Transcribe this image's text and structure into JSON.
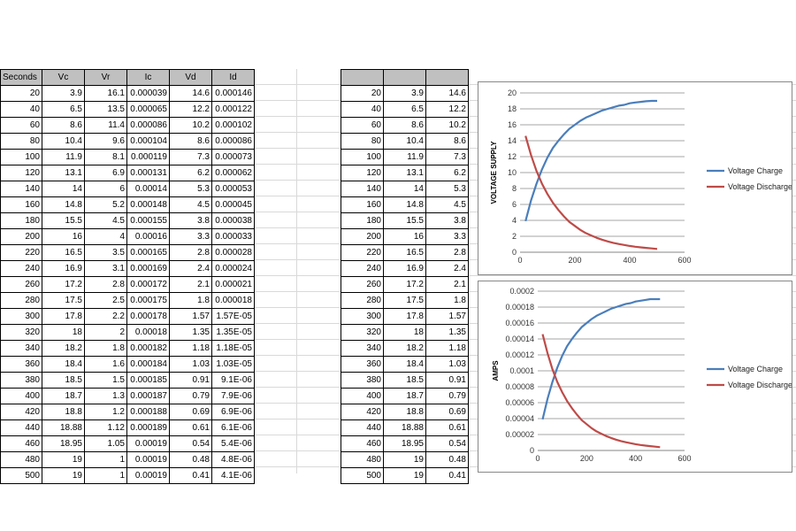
{
  "table_left": {
    "headers": [
      "Seconds",
      "Vc",
      "Vr",
      "Ic",
      "Vd",
      "Id"
    ],
    "rows": [
      [
        "20",
        "3.9",
        "16.1",
        "0.000039",
        "14.6",
        "0.000146"
      ],
      [
        "40",
        "6.5",
        "13.5",
        "0.000065",
        "12.2",
        "0.000122"
      ],
      [
        "60",
        "8.6",
        "11.4",
        "0.000086",
        "10.2",
        "0.000102"
      ],
      [
        "80",
        "10.4",
        "9.6",
        "0.000104",
        "8.6",
        "0.000086"
      ],
      [
        "100",
        "11.9",
        "8.1",
        "0.000119",
        "7.3",
        "0.000073"
      ],
      [
        "120",
        "13.1",
        "6.9",
        "0.000131",
        "6.2",
        "0.000062"
      ],
      [
        "140",
        "14",
        "6",
        "0.00014",
        "5.3",
        "0.000053"
      ],
      [
        "160",
        "14.8",
        "5.2",
        "0.000148",
        "4.5",
        "0.000045"
      ],
      [
        "180",
        "15.5",
        "4.5",
        "0.000155",
        "3.8",
        "0.000038"
      ],
      [
        "200",
        "16",
        "4",
        "0.00016",
        "3.3",
        "0.000033"
      ],
      [
        "220",
        "16.5",
        "3.5",
        "0.000165",
        "2.8",
        "0.000028"
      ],
      [
        "240",
        "16.9",
        "3.1",
        "0.000169",
        "2.4",
        "0.000024"
      ],
      [
        "260",
        "17.2",
        "2.8",
        "0.000172",
        "2.1",
        "0.000021"
      ],
      [
        "280",
        "17.5",
        "2.5",
        "0.000175",
        "1.8",
        "0.000018"
      ],
      [
        "300",
        "17.8",
        "2.2",
        "0.000178",
        "1.57",
        "1.57E-05"
      ],
      [
        "320",
        "18",
        "2",
        "0.00018",
        "1.35",
        "1.35E-05"
      ],
      [
        "340",
        "18.2",
        "1.8",
        "0.000182",
        "1.18",
        "1.18E-05"
      ],
      [
        "360",
        "18.4",
        "1.6",
        "0.000184",
        "1.03",
        "1.03E-05"
      ],
      [
        "380",
        "18.5",
        "1.5",
        "0.000185",
        "0.91",
        "9.1E-06"
      ],
      [
        "400",
        "18.7",
        "1.3",
        "0.000187",
        "0.79",
        "7.9E-06"
      ],
      [
        "420",
        "18.8",
        "1.2",
        "0.000188",
        "0.69",
        "6.9E-06"
      ],
      [
        "440",
        "18.88",
        "1.12",
        "0.000189",
        "0.61",
        "6.1E-06"
      ],
      [
        "460",
        "18.95",
        "1.05",
        "0.00019",
        "0.54",
        "5.4E-06"
      ],
      [
        "480",
        "19",
        "1",
        "0.00019",
        "0.48",
        "4.8E-06"
      ],
      [
        "500",
        "19",
        "1",
        "0.00019",
        "0.41",
        "4.1E-06"
      ]
    ]
  },
  "table_right": {
    "headers": [
      "",
      "",
      ""
    ],
    "rows": [
      [
        "20",
        "3.9",
        "14.6"
      ],
      [
        "40",
        "6.5",
        "12.2"
      ],
      [
        "60",
        "8.6",
        "10.2"
      ],
      [
        "80",
        "10.4",
        "8.6"
      ],
      [
        "100",
        "11.9",
        "7.3"
      ],
      [
        "120",
        "13.1",
        "6.2"
      ],
      [
        "140",
        "14",
        "5.3"
      ],
      [
        "160",
        "14.8",
        "4.5"
      ],
      [
        "180",
        "15.5",
        "3.8"
      ],
      [
        "200",
        "16",
        "3.3"
      ],
      [
        "220",
        "16.5",
        "2.8"
      ],
      [
        "240",
        "16.9",
        "2.4"
      ],
      [
        "260",
        "17.2",
        "2.1"
      ],
      [
        "280",
        "17.5",
        "1.8"
      ],
      [
        "300",
        "17.8",
        "1.57"
      ],
      [
        "320",
        "18",
        "1.35"
      ],
      [
        "340",
        "18.2",
        "1.18"
      ],
      [
        "360",
        "18.4",
        "1.03"
      ],
      [
        "380",
        "18.5",
        "0.91"
      ],
      [
        "400",
        "18.7",
        "0.79"
      ],
      [
        "420",
        "18.8",
        "0.69"
      ],
      [
        "440",
        "18.88",
        "0.61"
      ],
      [
        "460",
        "18.95",
        "0.54"
      ],
      [
        "480",
        "19",
        "0.48"
      ],
      [
        "500",
        "19",
        "0.41"
      ]
    ]
  },
  "colors": {
    "charge": "#4a7ebb",
    "discharge": "#be4b48",
    "gridline": "#868686"
  },
  "chart_data": [
    {
      "type": "line",
      "title": "",
      "xlabel": "",
      "ylabel": "VOLTAGE SUPPLY",
      "xlim": [
        0,
        600
      ],
      "ylim": [
        0,
        20
      ],
      "xticks": [
        0,
        200,
        400,
        600
      ],
      "yticks": [
        0,
        2,
        4,
        6,
        8,
        10,
        12,
        14,
        16,
        18,
        20
      ],
      "ytick_labels": [
        "0",
        "2",
        "4",
        "6",
        "8",
        "10",
        "12",
        "14",
        "16",
        "18",
        "20"
      ],
      "grid": true,
      "legend_position": "right",
      "x": [
        20,
        40,
        60,
        80,
        100,
        120,
        140,
        160,
        180,
        200,
        220,
        240,
        260,
        280,
        300,
        320,
        340,
        360,
        380,
        400,
        420,
        440,
        460,
        480,
        500
      ],
      "series": [
        {
          "name": "Voltage Charge",
          "color": "#4a7ebb",
          "values": [
            3.9,
            6.5,
            8.6,
            10.4,
            11.9,
            13.1,
            14,
            14.8,
            15.5,
            16,
            16.5,
            16.9,
            17.2,
            17.5,
            17.8,
            18,
            18.2,
            18.4,
            18.5,
            18.7,
            18.8,
            18.88,
            18.95,
            19,
            19
          ]
        },
        {
          "name": "Voltage Discharge",
          "color": "#be4b48",
          "values": [
            14.6,
            12.2,
            10.2,
            8.6,
            7.3,
            6.2,
            5.3,
            4.5,
            3.8,
            3.3,
            2.8,
            2.4,
            2.1,
            1.8,
            1.57,
            1.35,
            1.18,
            1.03,
            0.91,
            0.79,
            0.69,
            0.61,
            0.54,
            0.48,
            0.41
          ]
        }
      ]
    },
    {
      "type": "line",
      "title": "",
      "xlabel": "",
      "ylabel": "AMPS",
      "xlim": [
        0,
        600
      ],
      "ylim": [
        0,
        0.0002
      ],
      "xticks": [
        0,
        200,
        400,
        600
      ],
      "yticks": [
        0,
        2e-05,
        4e-05,
        6e-05,
        8e-05,
        0.0001,
        0.00012,
        0.00014,
        0.00016,
        0.00018,
        0.0002
      ],
      "ytick_labels": [
        "0",
        "0.00002",
        "0.00004",
        "0.00006",
        "0.00008",
        "0.0001",
        "0.00012",
        "0.00014",
        "0.00016",
        "0.00018",
        "0.0002"
      ],
      "grid": true,
      "legend_position": "right",
      "x": [
        20,
        40,
        60,
        80,
        100,
        120,
        140,
        160,
        180,
        200,
        220,
        240,
        260,
        280,
        300,
        320,
        340,
        360,
        380,
        400,
        420,
        440,
        460,
        480,
        500
      ],
      "series": [
        {
          "name": "Voltage Charge",
          "color": "#4a7ebb",
          "values": [
            3.9e-05,
            6.5e-05,
            8.6e-05,
            0.000104,
            0.000119,
            0.000131,
            0.00014,
            0.000148,
            0.000155,
            0.00016,
            0.000165,
            0.000169,
            0.000172,
            0.000175,
            0.000178,
            0.00018,
            0.000182,
            0.000184,
            0.000185,
            0.000187,
            0.000188,
            0.000189,
            0.00019,
            0.00019,
            0.00019
          ]
        },
        {
          "name": "Voltage Discharge",
          "color": "#be4b48",
          "values": [
            0.000146,
            0.000122,
            0.000102,
            8.6e-05,
            7.3e-05,
            6.2e-05,
            5.3e-05,
            4.5e-05,
            3.8e-05,
            3.3e-05,
            2.8e-05,
            2.4e-05,
            2.1e-05,
            1.8e-05,
            1.57e-05,
            1.35e-05,
            1.18e-05,
            1.03e-05,
            9.1e-06,
            7.9e-06,
            6.9e-06,
            6.1e-06,
            5.4e-06,
            4.8e-06,
            4.1e-06
          ]
        }
      ]
    }
  ]
}
